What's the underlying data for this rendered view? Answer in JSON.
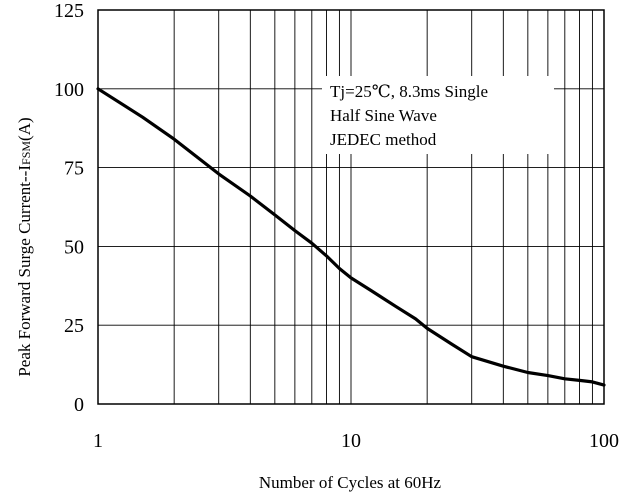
{
  "chart_data": {
    "type": "line",
    "title": "",
    "xlabel": "Number of Cycles at 60Hz",
    "ylabel": "Peak Forward Surge Current--I",
    "ylabel_subscript": "FSM",
    "ylabel_unit": "(A)",
    "xscale": "log",
    "xlim": [
      1,
      100
    ],
    "ylim": [
      0,
      125
    ],
    "x_tick_labels": [
      "1",
      "10",
      "100"
    ],
    "y_tick_labels": [
      "0",
      "25",
      "50",
      "75",
      "100",
      "125"
    ],
    "grid": true,
    "annotation": {
      "lines": [
        "Tj=25℃, 8.3ms Single",
        "Half Sine Wave",
        "JEDEC method"
      ],
      "placement": "top-right"
    },
    "series": [
      {
        "color": "#000000",
        "x": [
          1,
          1.5,
          2,
          3,
          4,
          5,
          6,
          7,
          8,
          9,
          10,
          12,
          15,
          18,
          20,
          25,
          30,
          40,
          50,
          60,
          70,
          80,
          90,
          100
        ],
        "y": [
          100,
          91,
          84,
          73,
          66,
          60,
          55,
          51,
          47,
          43,
          40,
          36,
          31,
          27,
          24,
          19,
          15,
          12,
          10,
          9,
          8,
          7.5,
          7,
          6
        ]
      }
    ]
  }
}
